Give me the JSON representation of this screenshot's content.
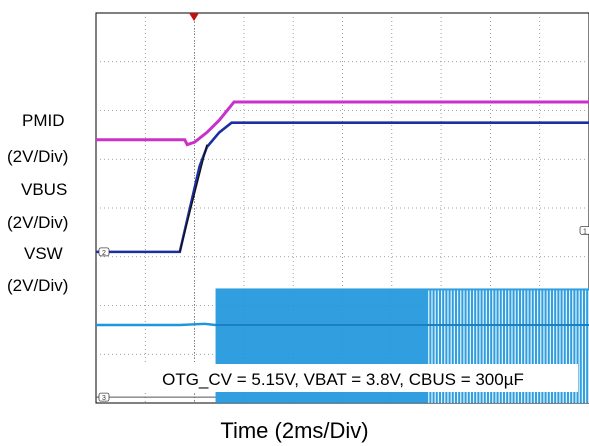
{
  "chart_data": {
    "type": "line",
    "title": "",
    "xlabel": "Time (2ms/Div)",
    "ylabel": "",
    "grid": true,
    "x_divisions": 10,
    "y_divisions": 8,
    "time_per_div_ms": 2,
    "volts_per_div": 2,
    "annotation": "OTG_CV = 5.15V, VBAT = 3.8V, CBUS = 300µF",
    "trigger_marker_time_ms": 0,
    "channels": [
      {
        "channel": "1",
        "label": "PMID",
        "scale": "(2V/Div)",
        "color": "#c832c8",
        "time_ms": [
          -4,
          -0.4,
          -0.3,
          0,
          0.5,
          1.0,
          1.4,
          1.6,
          16
        ],
        "volts": [
          3.8,
          3.8,
          3.6,
          3.7,
          4.1,
          4.6,
          5.1,
          5.35,
          5.35
        ]
      },
      {
        "channel": "2",
        "label": "VBUS",
        "scale": "(2V/Div)",
        "color": "#1c2fa0",
        "time_ms": [
          -4,
          -0.6,
          0.2,
          0.5,
          1.0,
          1.5,
          16
        ],
        "volts": [
          0,
          0,
          3.5,
          4.3,
          4.9,
          5.3,
          5.3
        ]
      },
      {
        "channel": "3",
        "label": "VSW",
        "scale": "(2V/Div)",
        "color": "#1e96dc",
        "switching_start_ms": 0.85,
        "switching_low_v": -0.5,
        "switching_high_v": 4.5,
        "dc_level_v": 3.0
      }
    ]
  },
  "labels": {
    "pmid": "PMID",
    "pmid_scale": "(2V/Div)",
    "vbus": "VBUS",
    "vbus_scale": "(2V/Div)",
    "vsw": "VSW",
    "vsw_scale": "(2V/Div)"
  },
  "markers": {
    "ch1": "1",
    "ch2": "2",
    "ch3": "3"
  }
}
